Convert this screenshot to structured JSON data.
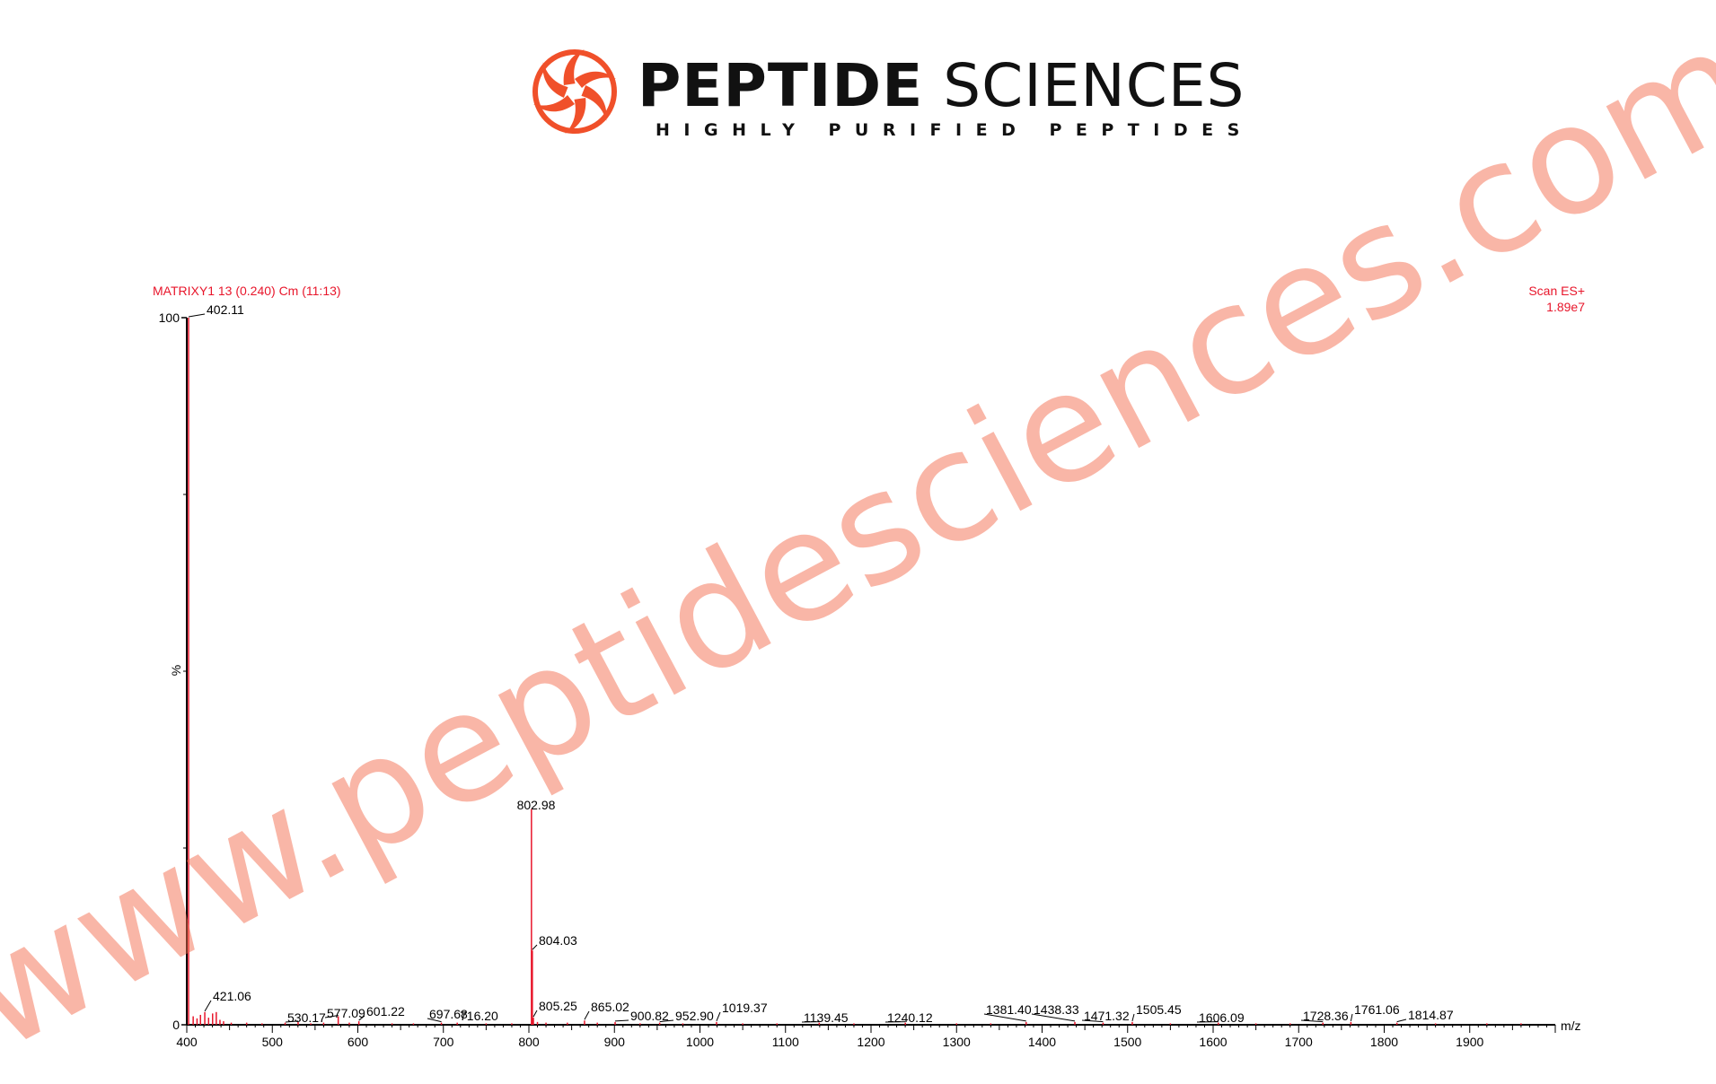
{
  "brand": {
    "name_bold": "PEPTIDE",
    "name_light": " SCIENCES",
    "tagline": "HIGHLY PURIFIED PEPTIDES",
    "logo_icon": "swirl-logo-icon",
    "logo_color": "#f0502a"
  },
  "watermark": "www.peptidesciences.com",
  "chart_data": {
    "type": "bar",
    "title": "MATRIXY1 13 (0.240) Cm (11:13)",
    "scan_mode": "Scan ES+",
    "base_intensity": "1.89e7",
    "xlabel": "m/z",
    "ylabel": "%",
    "xlim": [
      400,
      2000
    ],
    "ylim": [
      0,
      100
    ],
    "x_ticks": [
      400,
      500,
      600,
      700,
      800,
      900,
      1000,
      1100,
      1200,
      1300,
      1400,
      1500,
      1600,
      1700,
      1800,
      1900
    ],
    "y_ticks": [
      0,
      100
    ],
    "peak_color": "#e8162b",
    "peaks": [
      {
        "mz": 402.11,
        "intensity": 100,
        "label": "402.11"
      },
      {
        "mz": 802.98,
        "intensity": 30.5,
        "label": "802.98"
      },
      {
        "mz": 804.03,
        "intensity": 10.5,
        "label": "804.03"
      },
      {
        "mz": 421.06,
        "intensity": 1.8,
        "label": "421.06"
      },
      {
        "mz": 805.25,
        "intensity": 1.0,
        "label": "805.25"
      },
      {
        "mz": 577.09,
        "intensity": 1.2,
        "label": "577.09"
      },
      {
        "mz": 530.17,
        "intensity": 0.4,
        "label": "530.17"
      },
      {
        "mz": 601.22,
        "intensity": 0.5,
        "label": "601.22"
      },
      {
        "mz": 697.68,
        "intensity": 0.3,
        "label": "697.68"
      },
      {
        "mz": 716.2,
        "intensity": 0.3,
        "label": "716.20"
      },
      {
        "mz": 865.02,
        "intensity": 0.6,
        "label": "865.02"
      },
      {
        "mz": 900.82,
        "intensity": 0.4,
        "label": "900.82"
      },
      {
        "mz": 952.9,
        "intensity": 0.3,
        "label": "952.90"
      },
      {
        "mz": 1019.37,
        "intensity": 0.4,
        "label": "1019.37"
      },
      {
        "mz": 1139.45,
        "intensity": 0.3,
        "label": "1139.45"
      },
      {
        "mz": 1240.12,
        "intensity": 0.3,
        "label": "1240.12"
      },
      {
        "mz": 1381.4,
        "intensity": 0.4,
        "label": "1381.40"
      },
      {
        "mz": 1438.33,
        "intensity": 0.4,
        "label": "1438.33"
      },
      {
        "mz": 1471.32,
        "intensity": 0.3,
        "label": "1471.32"
      },
      {
        "mz": 1505.45,
        "intensity": 0.4,
        "label": "1505.45"
      },
      {
        "mz": 1606.09,
        "intensity": 0.3,
        "label": "1606.09"
      },
      {
        "mz": 1728.36,
        "intensity": 0.3,
        "label": "1728.36"
      },
      {
        "mz": 1761.06,
        "intensity": 0.4,
        "label": "1761.06"
      },
      {
        "mz": 1814.87,
        "intensity": 0.3,
        "label": "1814.87"
      },
      {
        "mz": 407.5,
        "intensity": 1.2,
        "label": ""
      },
      {
        "mz": 412.0,
        "intensity": 0.9,
        "label": ""
      },
      {
        "mz": 416.0,
        "intensity": 1.4,
        "label": ""
      },
      {
        "mz": 425.5,
        "intensity": 1.0,
        "label": ""
      },
      {
        "mz": 430.2,
        "intensity": 1.6,
        "label": ""
      },
      {
        "mz": 434.5,
        "intensity": 1.8,
        "label": ""
      },
      {
        "mz": 438.8,
        "intensity": 0.7,
        "label": ""
      },
      {
        "mz": 443.0,
        "intensity": 0.5,
        "label": ""
      },
      {
        "mz": 452.0,
        "intensity": 0.3,
        "label": ""
      },
      {
        "mz": 470.0,
        "intensity": 0.3,
        "label": ""
      },
      {
        "mz": 488.0,
        "intensity": 0.2,
        "label": ""
      },
      {
        "mz": 515.0,
        "intensity": 0.3,
        "label": ""
      },
      {
        "mz": 545.0,
        "intensity": 0.2,
        "label": ""
      },
      {
        "mz": 560.0,
        "intensity": 0.3,
        "label": ""
      },
      {
        "mz": 590.0,
        "intensity": 0.3,
        "label": ""
      },
      {
        "mz": 640.0,
        "intensity": 0.2,
        "label": ""
      },
      {
        "mz": 665.0,
        "intensity": 0.2,
        "label": ""
      },
      {
        "mz": 750.0,
        "intensity": 0.2,
        "label": ""
      },
      {
        "mz": 780.0,
        "intensity": 0.2,
        "label": ""
      },
      {
        "mz": 810.0,
        "intensity": 0.4,
        "label": ""
      },
      {
        "mz": 820.0,
        "intensity": 0.3,
        "label": ""
      },
      {
        "mz": 845.0,
        "intensity": 0.3,
        "label": ""
      },
      {
        "mz": 880.0,
        "intensity": 0.3,
        "label": ""
      },
      {
        "mz": 930.0,
        "intensity": 0.2,
        "label": ""
      },
      {
        "mz": 980.0,
        "intensity": 0.2,
        "label": ""
      },
      {
        "mz": 1050.0,
        "intensity": 0.2,
        "label": ""
      },
      {
        "mz": 1090.0,
        "intensity": 0.2,
        "label": ""
      },
      {
        "mz": 1180.0,
        "intensity": 0.2,
        "label": ""
      },
      {
        "mz": 1300.0,
        "intensity": 0.2,
        "label": ""
      },
      {
        "mz": 1340.0,
        "intensity": 0.2,
        "label": ""
      },
      {
        "mz": 1550.0,
        "intensity": 0.2,
        "label": ""
      },
      {
        "mz": 1650.0,
        "intensity": 0.2,
        "label": ""
      },
      {
        "mz": 1690.0,
        "intensity": 0.2,
        "label": ""
      },
      {
        "mz": 1860.0,
        "intensity": 0.2,
        "label": ""
      },
      {
        "mz": 1920.0,
        "intensity": 0.2,
        "label": ""
      },
      {
        "mz": 1960.0,
        "intensity": 0.2,
        "label": ""
      }
    ]
  }
}
